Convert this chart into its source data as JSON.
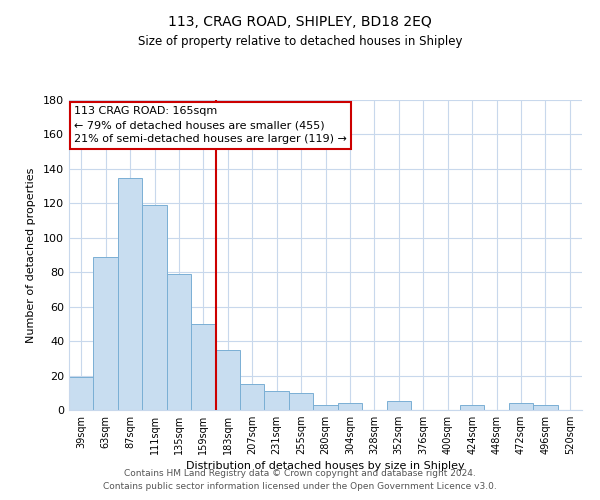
{
  "title1": "113, CRAG ROAD, SHIPLEY, BD18 2EQ",
  "title2": "Size of property relative to detached houses in Shipley",
  "xlabel": "Distribution of detached houses by size in Shipley",
  "ylabel": "Number of detached properties",
  "bar_labels": [
    "39sqm",
    "63sqm",
    "87sqm",
    "111sqm",
    "135sqm",
    "159sqm",
    "183sqm",
    "207sqm",
    "231sqm",
    "255sqm",
    "280sqm",
    "304sqm",
    "328sqm",
    "352sqm",
    "376sqm",
    "400sqm",
    "424sqm",
    "448sqm",
    "472sqm",
    "496sqm",
    "520sqm"
  ],
  "bar_values": [
    19,
    89,
    135,
    119,
    79,
    50,
    35,
    15,
    11,
    10,
    3,
    4,
    0,
    5,
    0,
    0,
    3,
    0,
    4,
    3,
    0
  ],
  "bar_color": "#c8ddf0",
  "bar_edge_color": "#7aafd4",
  "vline_index": 5,
  "vline_color": "#cc0000",
  "annotation_title": "113 CRAG ROAD: 165sqm",
  "annotation_line1": "← 79% of detached houses are smaller (455)",
  "annotation_line2": "21% of semi-detached houses are larger (119) →",
  "annotation_box_color": "#ffffff",
  "annotation_box_edge_color": "#cc0000",
  "ylim": [
    0,
    180
  ],
  "yticks": [
    0,
    20,
    40,
    60,
    80,
    100,
    120,
    140,
    160,
    180
  ],
  "footer1": "Contains HM Land Registry data © Crown copyright and database right 2024.",
  "footer2": "Contains public sector information licensed under the Open Government Licence v3.0.",
  "bg_color": "#ffffff",
  "grid_color": "#c8d8ec"
}
